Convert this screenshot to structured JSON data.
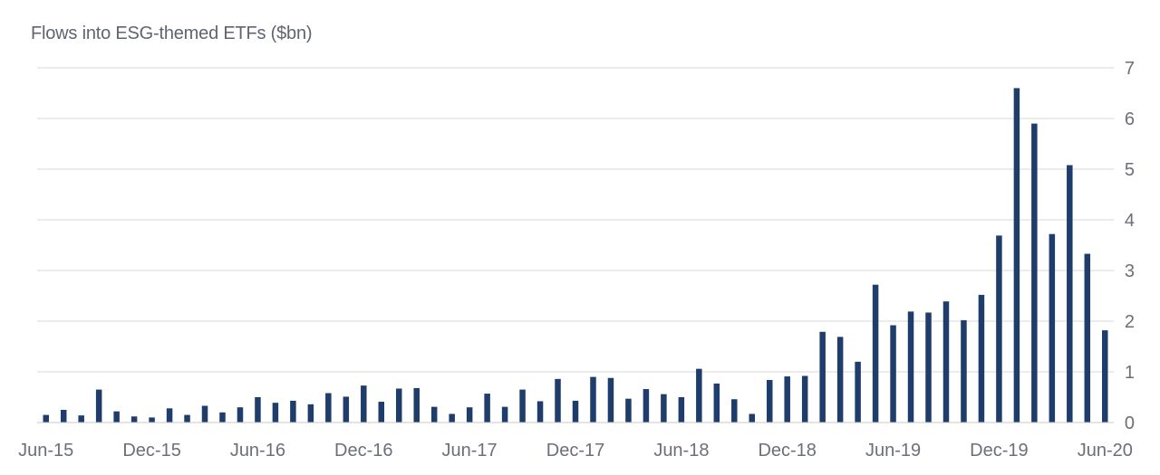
{
  "chart_data": {
    "type": "bar",
    "title": "Flows into ESG-themed ETFs ($bn)",
    "xlabel": "",
    "ylabel": "",
    "ylim": [
      0,
      7
    ],
    "y_ticks": [
      "0",
      "1",
      "2",
      "3",
      "4",
      "5",
      "6",
      "7"
    ],
    "y_axis_side": "right",
    "grid": true,
    "bar_color": "#1f3d6b",
    "x_tick_labels": [
      "Jun-15",
      "Dec-15",
      "Jun-16",
      "Dec-16",
      "Jun-17",
      "Dec-17",
      "Jun-18",
      "Dec-18",
      "Jun-19",
      "Dec-19",
      "Jun-20"
    ],
    "categories": [
      "Jun-15",
      "Jul-15",
      "Aug-15",
      "Sep-15",
      "Oct-15",
      "Nov-15",
      "Dec-15",
      "Jan-16",
      "Feb-16",
      "Mar-16",
      "Apr-16",
      "May-16",
      "Jun-16",
      "Jul-16",
      "Aug-16",
      "Sep-16",
      "Oct-16",
      "Nov-16",
      "Dec-16",
      "Jan-17",
      "Feb-17",
      "Mar-17",
      "Apr-17",
      "May-17",
      "Jun-17",
      "Jul-17",
      "Aug-17",
      "Sep-17",
      "Oct-17",
      "Nov-17",
      "Dec-17",
      "Jan-18",
      "Feb-18",
      "Mar-18",
      "Apr-18",
      "May-18",
      "Jun-18",
      "Jul-18",
      "Aug-18",
      "Sep-18",
      "Oct-18",
      "Nov-18",
      "Dec-18",
      "Jan-19",
      "Feb-19",
      "Mar-19",
      "Apr-19",
      "May-19",
      "Jun-19",
      "Jul-19",
      "Aug-19",
      "Sep-19",
      "Oct-19",
      "Nov-19",
      "Dec-19",
      "Jan-20",
      "Feb-20",
      "Mar-20",
      "Apr-20",
      "May-20",
      "Jun-20"
    ],
    "values": [
      0.15,
      0.25,
      0.14,
      0.65,
      0.22,
      0.12,
      0.1,
      0.28,
      0.15,
      0.33,
      0.2,
      0.3,
      0.5,
      0.39,
      0.43,
      0.36,
      0.58,
      0.51,
      0.73,
      0.41,
      0.67,
      0.68,
      0.31,
      0.17,
      0.3,
      0.57,
      0.31,
      0.65,
      0.42,
      0.86,
      0.43,
      0.9,
      0.88,
      0.47,
      0.66,
      0.56,
      0.5,
      1.06,
      0.77,
      0.46,
      0.17,
      0.84,
      0.91,
      0.92,
      1.79,
      1.69,
      1.2,
      2.72,
      1.92,
      2.19,
      2.17,
      2.39,
      2.02,
      2.52,
      3.69,
      6.6,
      5.9,
      3.72,
      5.08,
      3.33,
      1.82
    ]
  }
}
